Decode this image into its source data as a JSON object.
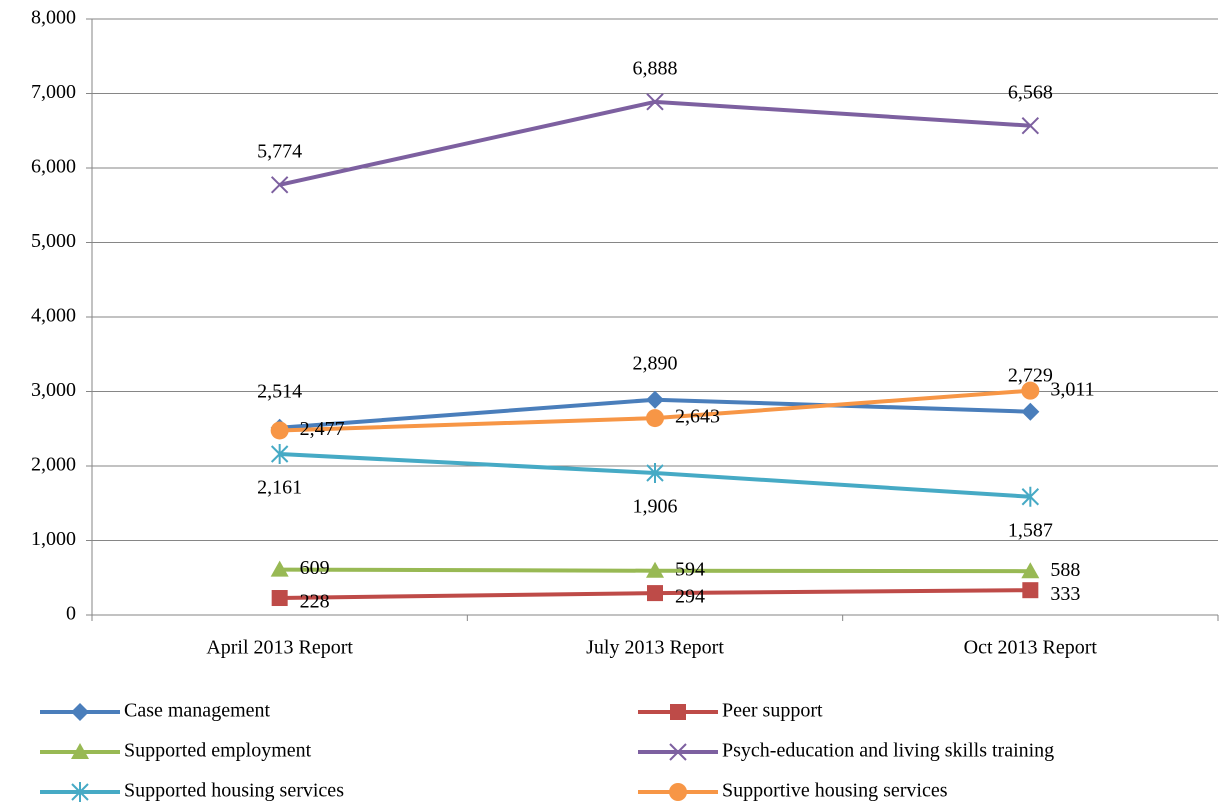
{
  "chart_data": {
    "type": "line",
    "categories": [
      "April 2013 Report",
      "July 2013 Report",
      "Oct 2013 Report"
    ],
    "ylim": [
      0,
      8000
    ],
    "yticks": [
      {
        "value": 0,
        "label": "0"
      },
      {
        "value": 1000,
        "label": "1,000"
      },
      {
        "value": 2000,
        "label": "2,000"
      },
      {
        "value": 3000,
        "label": "3,000"
      },
      {
        "value": 4000,
        "label": "4,000"
      },
      {
        "value": 5000,
        "label": "5,000"
      },
      {
        "value": 6000,
        "label": "6,000"
      },
      {
        "value": 7000,
        "label": "7,000"
      },
      {
        "value": 8000,
        "label": "8,000"
      }
    ],
    "grid": true,
    "legend": "bottom",
    "series": [
      {
        "name": "Case management",
        "color": "#4a7ebb",
        "marker": "diamond",
        "values": [
          2514,
          2890,
          2729
        ],
        "value_labels": [
          "2,514",
          "2,890",
          "2,729"
        ]
      },
      {
        "name": "Peer support",
        "color": "#be4b48",
        "marker": "square",
        "values": [
          228,
          294,
          333
        ],
        "value_labels": [
          "228",
          "294",
          "333"
        ]
      },
      {
        "name": "Supported employment",
        "color": "#98b954",
        "marker": "triangle",
        "values": [
          609,
          594,
          588
        ],
        "value_labels": [
          "609",
          "594",
          "588"
        ]
      },
      {
        "name": "Psych-education and living skills training",
        "color": "#7d60a0",
        "marker": "x",
        "values": [
          5774,
          6888,
          6568
        ],
        "value_labels": [
          "5,774",
          "6,888",
          "6,568"
        ]
      },
      {
        "name": "Supported housing services",
        "color": "#46aac5",
        "marker": "star",
        "values": [
          2161,
          1906,
          1587
        ],
        "value_labels": [
          "2,161",
          "1,906",
          "1,587"
        ]
      },
      {
        "name": "Supportive housing services",
        "color": "#f79646",
        "marker": "circle",
        "values": [
          2477,
          2643,
          3011
        ],
        "value_labels": [
          "2,477",
          "2,643",
          "3,011"
        ]
      }
    ]
  }
}
